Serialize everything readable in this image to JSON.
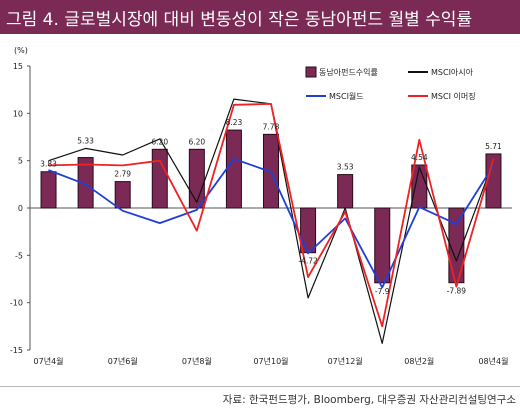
{
  "title": "그림 4. 글로벌시장에 대비 변동성이 작은 동남아펀드 월별 수익률",
  "source": "자료: 한국펀드평가, Bloomberg, 대우증권 자산관리컨설팅연구소",
  "colors": {
    "title_bg": "#7a2a54",
    "bar": "#7a2a54",
    "msci_asia": "#111111",
    "msci_world": "#1f3fd6",
    "msci_em": "#ee2222"
  },
  "chart_data": {
    "type": "bar",
    "unit_label": "(%)",
    "ylim": [
      -15,
      15
    ],
    "yticks": [
      -15,
      -10,
      -5,
      0,
      5,
      10,
      15
    ],
    "legend_position": "top-right",
    "categories": [
      "07년4월",
      "",
      "07년6월",
      "",
      "07년8월",
      "",
      "07년10월",
      "",
      "07년12월",
      "",
      "08년2월",
      "",
      "08년4월"
    ],
    "series": [
      {
        "name": "동남아펀드수익률",
        "type": "bar",
        "values": [
          3.83,
          5.33,
          2.79,
          6.2,
          6.2,
          8.23,
          7.78,
          -4.72,
          3.53,
          -7.9,
          4.54,
          -7.89,
          5.71
        ]
      },
      {
        "name": "MSCI아시아",
        "type": "line",
        "values": [
          5.0,
          6.3,
          5.6,
          7.3,
          0.6,
          11.5,
          11.0,
          -9.5,
          0.0,
          -14.3,
          4.3,
          -5.6,
          5.0
        ]
      },
      {
        "name": "MSCI월드",
        "type": "line",
        "values": [
          4.0,
          2.5,
          -0.3,
          -1.6,
          -0.2,
          5.2,
          3.8,
          -4.8,
          -1.1,
          -8.4,
          0.1,
          -1.7,
          4.5
        ]
      },
      {
        "name": "MSCI 이머징",
        "type": "line",
        "values": [
          4.5,
          4.6,
          4.5,
          5.0,
          -2.4,
          10.9,
          11.0,
          -7.3,
          -0.4,
          -12.5,
          7.2,
          -8.3,
          5.2
        ]
      }
    ],
    "data_labels": [
      "3.83",
      "5.33",
      "2.79",
      "6.20",
      "6.20",
      "8.23",
      "7.78",
      "-4.72",
      "3.53",
      "-7.9",
      "4.54",
      "-7.89",
      "5.71"
    ]
  }
}
